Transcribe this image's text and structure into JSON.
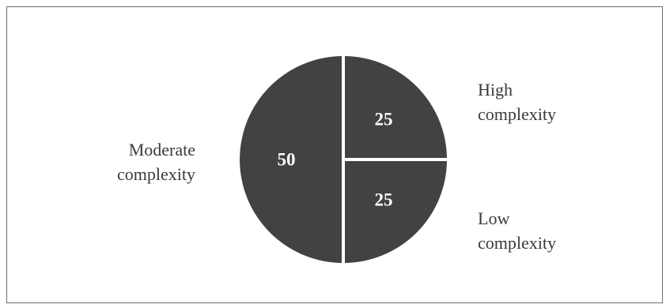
{
  "chart_data": {
    "type": "pie",
    "title": "",
    "slices": [
      {
        "category_lines": [
          "High",
          "complexity"
        ],
        "value": 25,
        "label": "25",
        "color": "#414244"
      },
      {
        "category_lines": [
          "Low",
          "complexity"
        ],
        "value": 25,
        "label": "25",
        "color": "#414244"
      },
      {
        "category_lines": [
          "Moderate",
          "complexity"
        ],
        "value": 50,
        "label": "50",
        "color": "#414244"
      }
    ],
    "separator_color": "#ffffff",
    "legend": "none",
    "label_placement": "outside"
  }
}
